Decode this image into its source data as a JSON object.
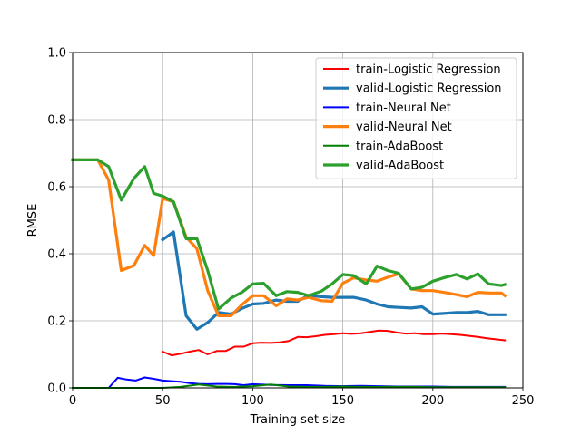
{
  "chart_data": {
    "type": "line",
    "title": "",
    "xlabel": "Training set size",
    "ylabel": "RMSE",
    "xlim": [
      0,
      250
    ],
    "ylim": [
      0,
      1.0
    ],
    "xticks": [
      "0",
      "50",
      "100",
      "150",
      "200",
      "250"
    ],
    "yticks": [
      "0.0",
      "0.2",
      "0.4",
      "0.6",
      "0.8",
      "1.0"
    ],
    "grid": true,
    "legend_position": "top-right",
    "series": [
      {
        "name": "train-Logistic Regression",
        "color": "#ff0000",
        "style": "thin",
        "x": [
          50,
          55,
          60,
          65,
          70,
          75,
          80,
          85,
          90,
          95,
          100,
          105,
          110,
          115,
          120,
          125,
          130,
          135,
          140,
          145,
          150,
          155,
          160,
          165,
          170,
          175,
          180,
          185,
          190,
          195,
          200,
          205,
          210,
          215,
          220,
          225,
          230,
          235,
          240
        ],
        "y": [
          0.108,
          0.097,
          0.102,
          0.108,
          0.113,
          0.1,
          0.11,
          0.11,
          0.123,
          0.123,
          0.133,
          0.135,
          0.134,
          0.136,
          0.14,
          0.152,
          0.151,
          0.154,
          0.158,
          0.16,
          0.163,
          0.161,
          0.163,
          0.167,
          0.171,
          0.17,
          0.165,
          0.162,
          0.163,
          0.16,
          0.16,
          0.162,
          0.16,
          0.158,
          0.155,
          0.152,
          0.148,
          0.145,
          0.142
        ]
      },
      {
        "name": "valid-Logistic Regression",
        "color": "#1f77b4",
        "style": "thick",
        "x": [
          50,
          56,
          63,
          69,
          75,
          81,
          88,
          94,
          100,
          106,
          113,
          119,
          125,
          131,
          138,
          144,
          150,
          156,
          163,
          169,
          175,
          181,
          188,
          194,
          200,
          206,
          213,
          219,
          225,
          231,
          238,
          240
        ],
        "y": [
          0.442,
          0.465,
          0.215,
          0.175,
          0.195,
          0.225,
          0.22,
          0.237,
          0.25,
          0.252,
          0.262,
          0.258,
          0.258,
          0.276,
          0.272,
          0.27,
          0.27,
          0.27,
          0.262,
          0.25,
          0.242,
          0.24,
          0.238,
          0.242,
          0.22,
          0.222,
          0.225,
          0.225,
          0.228,
          0.218,
          0.218,
          0.218
        ]
      },
      {
        "name": "train-Neural Net",
        "color": "#0000ff",
        "style": "thin",
        "x": [
          0,
          5,
          10,
          15,
          20,
          25,
          30,
          35,
          40,
          45,
          50,
          55,
          60,
          65,
          70,
          75,
          80,
          85,
          90,
          95,
          100,
          110,
          120,
          130,
          140,
          150,
          160,
          170,
          180,
          190,
          200,
          210,
          220,
          230,
          240
        ],
        "y": [
          0.0,
          0.0,
          0.0,
          0.0,
          0.0,
          0.03,
          0.025,
          0.022,
          0.031,
          0.027,
          0.022,
          0.02,
          0.018,
          0.014,
          0.012,
          0.011,
          0.012,
          0.012,
          0.011,
          0.008,
          0.011,
          0.009,
          0.008,
          0.008,
          0.006,
          0.005,
          0.006,
          0.005,
          0.004,
          0.004,
          0.004,
          0.003,
          0.003,
          0.003,
          0.003
        ]
      },
      {
        "name": "valid-Neural Net",
        "color": "#ff7f0e",
        "style": "thick",
        "x": [
          0,
          7,
          14,
          20,
          27,
          34,
          40,
          45,
          50,
          56,
          63,
          69,
          75,
          81,
          88,
          94,
          100,
          106,
          113,
          119,
          125,
          131,
          138,
          144,
          150,
          156,
          163,
          169,
          175,
          181,
          188,
          194,
          200,
          206,
          213,
          219,
          225,
          231,
          238,
          240
        ],
        "y": [
          0.68,
          0.68,
          0.68,
          0.62,
          0.35,
          0.365,
          0.425,
          0.395,
          0.565,
          0.555,
          0.45,
          0.415,
          0.29,
          0.215,
          0.215,
          0.248,
          0.275,
          0.275,
          0.245,
          0.265,
          0.262,
          0.27,
          0.26,
          0.258,
          0.312,
          0.328,
          0.322,
          0.318,
          0.33,
          0.34,
          0.295,
          0.29,
          0.29,
          0.285,
          0.278,
          0.272,
          0.285,
          0.283,
          0.283,
          0.275
        ]
      },
      {
        "name": "train-AdaBoost",
        "color": "#008000",
        "style": "thin",
        "x": [
          0,
          10,
          20,
          30,
          40,
          50,
          60,
          70,
          80,
          90,
          100,
          110,
          120,
          130,
          140,
          150,
          160,
          170,
          180,
          190,
          200,
          210,
          220,
          230,
          240
        ],
        "y": [
          0.0,
          0.0,
          0.0,
          0.0,
          0.0,
          0.0,
          0.003,
          0.01,
          0.004,
          0.003,
          0.005,
          0.01,
          0.004,
          0.003,
          0.003,
          0.004,
          0.003,
          0.003,
          0.003,
          0.003,
          0.002,
          0.002,
          0.002,
          0.002,
          0.002
        ]
      },
      {
        "name": "valid-AdaBoost",
        "color": "#2ca02c",
        "style": "thick",
        "x": [
          0,
          7,
          14,
          20,
          27,
          34,
          40,
          45,
          50,
          56,
          63,
          69,
          75,
          81,
          88,
          94,
          100,
          106,
          113,
          119,
          125,
          131,
          138,
          144,
          150,
          156,
          163,
          169,
          175,
          181,
          188,
          194,
          200,
          206,
          213,
          219,
          225,
          231,
          238,
          240
        ],
        "y": [
          0.68,
          0.68,
          0.68,
          0.66,
          0.56,
          0.625,
          0.66,
          0.58,
          0.572,
          0.555,
          0.445,
          0.445,
          0.35,
          0.235,
          0.268,
          0.285,
          0.31,
          0.312,
          0.275,
          0.287,
          0.285,
          0.275,
          0.288,
          0.31,
          0.338,
          0.335,
          0.31,
          0.363,
          0.35,
          0.342,
          0.295,
          0.3,
          0.318,
          0.328,
          0.338,
          0.325,
          0.34,
          0.31,
          0.305,
          0.308
        ]
      }
    ]
  }
}
